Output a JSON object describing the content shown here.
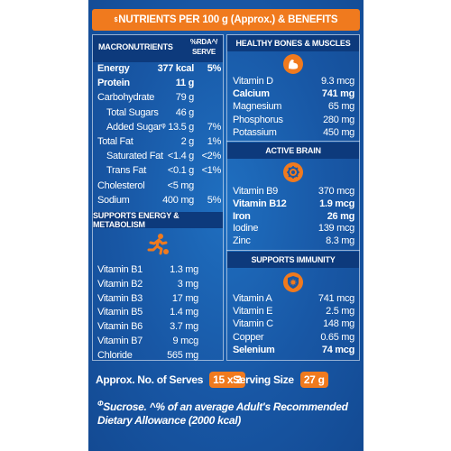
{
  "header": {
    "symbol": "$",
    "title": "NUTRIENTS PER 100 g (Approx.) & BENEFITS"
  },
  "macronutrients": {
    "heading": "MACRONUTRIENTS",
    "rda_heading_1": "%RDA^/",
    "rda_heading_2": "SERVE",
    "rows": [
      {
        "name": "Energy",
        "value": "377 kcal",
        "rda": "5%",
        "bold": true,
        "indent": false
      },
      {
        "name": "Protein",
        "value": "11 g",
        "rda": "",
        "bold": true,
        "indent": false
      },
      {
        "name": "Carbohydrate",
        "value": "79 g",
        "rda": "",
        "bold": false,
        "indent": false
      },
      {
        "name": "Total Sugars",
        "value": "46 g",
        "rda": "",
        "bold": false,
        "indent": true
      },
      {
        "name": "Added Sugarᵠ",
        "value": "13.5 g",
        "rda": "7%",
        "bold": false,
        "indent": true
      },
      {
        "name": "Total Fat",
        "value": "2 g",
        "rda": "1%",
        "bold": false,
        "indent": false
      },
      {
        "name": "Saturated Fat",
        "value": "<1.4 g",
        "rda": "<2%",
        "bold": false,
        "indent": true
      },
      {
        "name": "Trans Fat",
        "value": "<0.1 g",
        "rda": "<1%",
        "bold": false,
        "indent": true
      },
      {
        "name": "Cholesterol",
        "value": "<5 mg",
        "rda": "",
        "bold": false,
        "indent": false
      },
      {
        "name": "Sodium",
        "value": "400 mg",
        "rda": "5%",
        "bold": false,
        "indent": false
      }
    ]
  },
  "energy": {
    "heading": "SUPPORTS ENERGY & METABOLISM",
    "icon": "running-person-icon",
    "rows": [
      {
        "name": "Vitamin B1",
        "value": "1.3 mg"
      },
      {
        "name": "Vitamin B2",
        "value": "3 mg"
      },
      {
        "name": "Vitamin B3",
        "value": "17 mg"
      },
      {
        "name": "Vitamin B5",
        "value": "1.4 mg"
      },
      {
        "name": "Vitamin B6",
        "value": "3.7 mg"
      },
      {
        "name": "Vitamin B7",
        "value": "9 mcg"
      },
      {
        "name": "Chloride",
        "value": "565 mg"
      }
    ]
  },
  "bones": {
    "heading": "HEALTHY BONES & MUSCLES",
    "icon": "flexed-arm-icon",
    "rows": [
      {
        "name": "Vitamin D",
        "value": "9.3 mcg",
        "bold": false
      },
      {
        "name": "Calcium",
        "value": "741 mg",
        "bold": true
      },
      {
        "name": "Magnesium",
        "value": "65 mg",
        "bold": false
      },
      {
        "name": "Phosphorus",
        "value": "280 mg",
        "bold": false
      },
      {
        "name": "Potassium",
        "value": "450 mg",
        "bold": false
      }
    ]
  },
  "brain": {
    "heading": "ACTIVE BRAIN",
    "icon": "brain-gear-icon",
    "rows": [
      {
        "name": "Vitamin B9",
        "value": "370 mcg",
        "bold": false
      },
      {
        "name": "Vitamin B12",
        "value": "1.9 mcg",
        "bold": true
      },
      {
        "name": "Iron",
        "value": "26 mg",
        "bold": true
      },
      {
        "name": "Iodine",
        "value": "139 mcg",
        "bold": false
      },
      {
        "name": "Zinc",
        "value": "8.3 mg",
        "bold": false
      }
    ]
  },
  "immunity": {
    "heading": "SUPPORTS IMMUNITY",
    "icon": "shield-virus-icon",
    "rows": [
      {
        "name": "Vitamin A",
        "value": "741 mcg",
        "bold": false
      },
      {
        "name": "Vitamin E",
        "value": "2.5 mg",
        "bold": false
      },
      {
        "name": "Vitamin C",
        "value": "148 mg",
        "bold": false
      },
      {
        "name": "Copper",
        "value": "0.65 mg",
        "bold": false
      },
      {
        "name": "Selenium",
        "value": "74 mcg",
        "bold": true
      }
    ]
  },
  "serves": {
    "label": "Approx. No. of Serves",
    "value": "15 x 2"
  },
  "serving_size": {
    "label": "Serving Size",
    "value": "27 g"
  },
  "footnote": {
    "symbol": "Φ",
    "text": "Sucrose. ^% of an average Adult's Recommended Dietary Allowance (2000 kcal)"
  },
  "colors": {
    "panel": "#1857a5",
    "accent": "#f07a1e",
    "header_dark": "#0d3a7c"
  }
}
